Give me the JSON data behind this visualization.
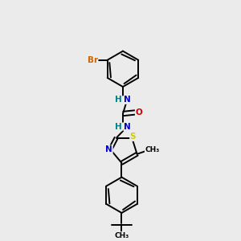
{
  "bg_color": "#ebebeb",
  "bond_color": "#000000",
  "bond_width": 1.4,
  "atom_colors": {
    "Br": "#cc6600",
    "N": "#0000cc",
    "O": "#cc0000",
    "S": "#cccc00",
    "C": "#000000",
    "H": "#008080"
  },
  "font_size": 7.5,
  "fig_size": [
    3.0,
    3.0
  ],
  "dpi": 100,
  "xlim": [
    0,
    10
  ],
  "ylim": [
    0,
    10
  ]
}
